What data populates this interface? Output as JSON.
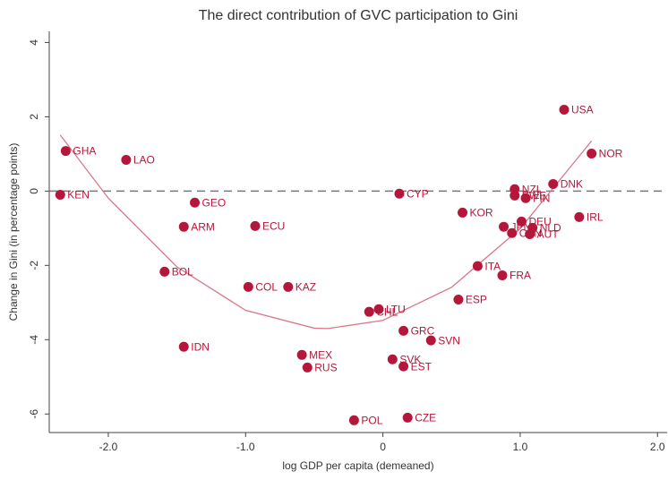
{
  "chart_data": {
    "type": "scatter",
    "title": "The direct contribution of GVC participation to Gini",
    "x_label": "log GDP per capita (demeaned)",
    "y_label": "Change in Gini (in percentage points)",
    "labels": [
      "GHA",
      "LAO",
      "KEN",
      "GEO",
      "ARM",
      "ECU",
      "BOL",
      "COL",
      "KAZ",
      "IDN",
      "MEX",
      "RUS",
      "POL",
      "CZE",
      "CYP",
      "CHL",
      "LTU",
      "GRC",
      "SVN",
      "SVK",
      "EST",
      "KOR",
      "ESP",
      "ITA",
      "FRA",
      "USA",
      "NOR",
      "DNK",
      "IRL",
      "NZL",
      "SWE",
      "FIN",
      "DEU",
      "JPN",
      "CAN",
      "NLD",
      "AUT"
    ],
    "x": [
      -2.31,
      -1.87,
      -2.35,
      -1.37,
      -1.45,
      -0.93,
      -1.59,
      -0.98,
      -0.69,
      -1.45,
      -0.59,
      -0.55,
      -0.21,
      0.18,
      0.12,
      -0.1,
      -0.03,
      0.15,
      0.35,
      0.07,
      0.15,
      0.58,
      0.55,
      0.69,
      0.87,
      1.32,
      1.52,
      1.24,
      1.43,
      0.96,
      0.96,
      1.04,
      1.01,
      0.88,
      0.94,
      1.09,
      1.07
    ],
    "values": [
      1.08,
      0.84,
      -0.1,
      -0.31,
      -0.96,
      -0.94,
      -2.17,
      -2.58,
      -2.58,
      -4.19,
      -4.41,
      -4.75,
      -6.17,
      -6.1,
      -0.07,
      -3.25,
      -3.18,
      -3.76,
      -4.02,
      -4.53,
      -4.72,
      -0.58,
      -2.92,
      -2.02,
      -2.27,
      2.19,
      1.01,
      0.19,
      -0.7,
      0.05,
      -0.12,
      -0.19,
      -0.82,
      -0.96,
      -1.13,
      -0.99,
      -1.16
    ],
    "color": "#b5173a",
    "fit": {
      "x": [
        -2.35,
        -2,
        -1.5,
        -1,
        -0.5,
        -0.4,
        0,
        0.5,
        1,
        1.52
      ],
      "y": [
        1.51,
        -0.19,
        -2.04,
        -3.21,
        -3.69,
        -3.7,
        -3.48,
        -2.59,
        -1.01,
        1.35
      ],
      "color": "#d9788a"
    },
    "refline": 0,
    "xlim": [
      -2.43,
      2.07
    ],
    "ylim": [
      -6.5,
      4.3
    ],
    "xticks": [
      {
        "value": -2,
        "label": "-2.0"
      },
      {
        "value": -1,
        "label": "-1.0"
      },
      {
        "value": 0,
        "label": "0"
      },
      {
        "value": 1,
        "label": "1.0"
      },
      {
        "value": 2,
        "label": "2.0"
      }
    ],
    "yticks": [
      -6,
      -4,
      -2,
      0,
      2,
      4
    ]
  }
}
